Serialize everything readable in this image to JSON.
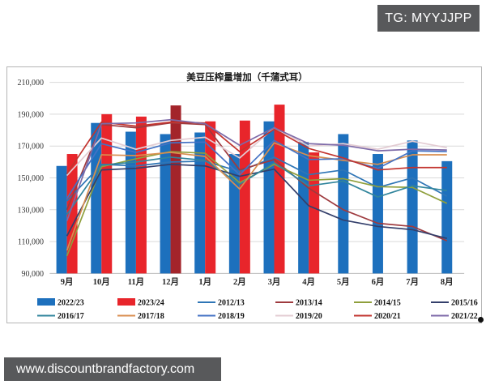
{
  "header": {
    "tg_label": "TG: MYYJJPP"
  },
  "footer": {
    "watermark": "www.discountbrandfactory.com"
  },
  "chart_data": {
    "type": "combo_bar_line",
    "title": "美豆压榨量增加（千蒲式耳）",
    "categories": [
      "9月",
      "10月",
      "11月",
      "12月",
      "1月",
      "2月",
      "3月",
      "4月",
      "5月",
      "6月",
      "7月",
      "8月"
    ],
    "ylim": [
      90000,
      210000
    ],
    "ytick_step": 20000,
    "ytick_labels": [
      "90,000",
      "110,000",
      "130,000",
      "150,000",
      "170,000",
      "190,000",
      "210,000"
    ],
    "grid": "horizontal",
    "legend_position": "bottom",
    "bar_series": [
      {
        "name": "2022/23",
        "color": "#1d70bd",
        "values": [
          157500,
          184500,
          179000,
          177500,
          178500,
          165000,
          185500,
          172500,
          177500,
          165000,
          173500,
          160500
        ]
      },
      {
        "name": "2023/24",
        "color": "#e8252b",
        "highlight_color": "#a3242a",
        "highlight_index": 3,
        "values": [
          165000,
          190000,
          188500,
          195500,
          185500,
          186000,
          196000,
          166000,
          null,
          null,
          null,
          null
        ]
      }
    ],
    "line_series": [
      {
        "name": "2012/13",
        "color": "#2e75b6",
        "values": [
          135500,
          158500,
          157500,
          160000,
          160500,
          154000,
          163000,
          152000,
          155000,
          144000,
          150000,
          138500
        ]
      },
      {
        "name": "2013/14",
        "color": "#9e3a3e",
        "values": [
          130000,
          183500,
          181500,
          184500,
          183500,
          155000,
          161500,
          143500,
          130000,
          121500,
          119500,
          110500
        ]
      },
      {
        "name": "2014/15",
        "color": "#8f9f3c",
        "values": [
          101000,
          157000,
          162000,
          166500,
          165500,
          147000,
          158500,
          148500,
          149500,
          144500,
          144000,
          134000
        ]
      },
      {
        "name": "2015/16",
        "color": "#333f6b",
        "values": [
          113500,
          155000,
          156000,
          158500,
          157500,
          151000,
          155500,
          132500,
          123500,
          119500,
          117500,
          112000
        ]
      },
      {
        "name": "2016/17",
        "color": "#31859c",
        "values": [
          127000,
          158000,
          160000,
          163000,
          161000,
          146000,
          159500,
          145000,
          148000,
          138000,
          145000,
          142000
        ]
      },
      {
        "name": "2017/18",
        "color": "#d98e4f",
        "values": [
          104500,
          164500,
          164000,
          166000,
          163500,
          143000,
          172000,
          164000,
          161000,
          158500,
          164500,
          164500
        ]
      },
      {
        "name": "2018/19",
        "color": "#4472c4",
        "values": [
          137000,
          171500,
          166000,
          172000,
          172500,
          152000,
          173500,
          161500,
          162000,
          156000,
          167000,
          166500
        ]
      },
      {
        "name": "2019/20",
        "color": "#e3ccd3",
        "values": [
          151500,
          175000,
          168000,
          173500,
          175500,
          162500,
          181500,
          170000,
          171500,
          168000,
          173000,
          169000
        ]
      },
      {
        "name": "2020/21",
        "color": "#c2342f",
        "values": [
          152500,
          185000,
          182500,
          185000,
          184500,
          166500,
          180500,
          168500,
          162500,
          155000,
          156500,
          156500
        ]
      },
      {
        "name": "2021/22",
        "color": "#7d6aa8",
        "values": [
          123000,
          184000,
          184500,
          186500,
          184000,
          170500,
          181500,
          171500,
          170500,
          167000,
          168000,
          167500
        ]
      }
    ]
  }
}
